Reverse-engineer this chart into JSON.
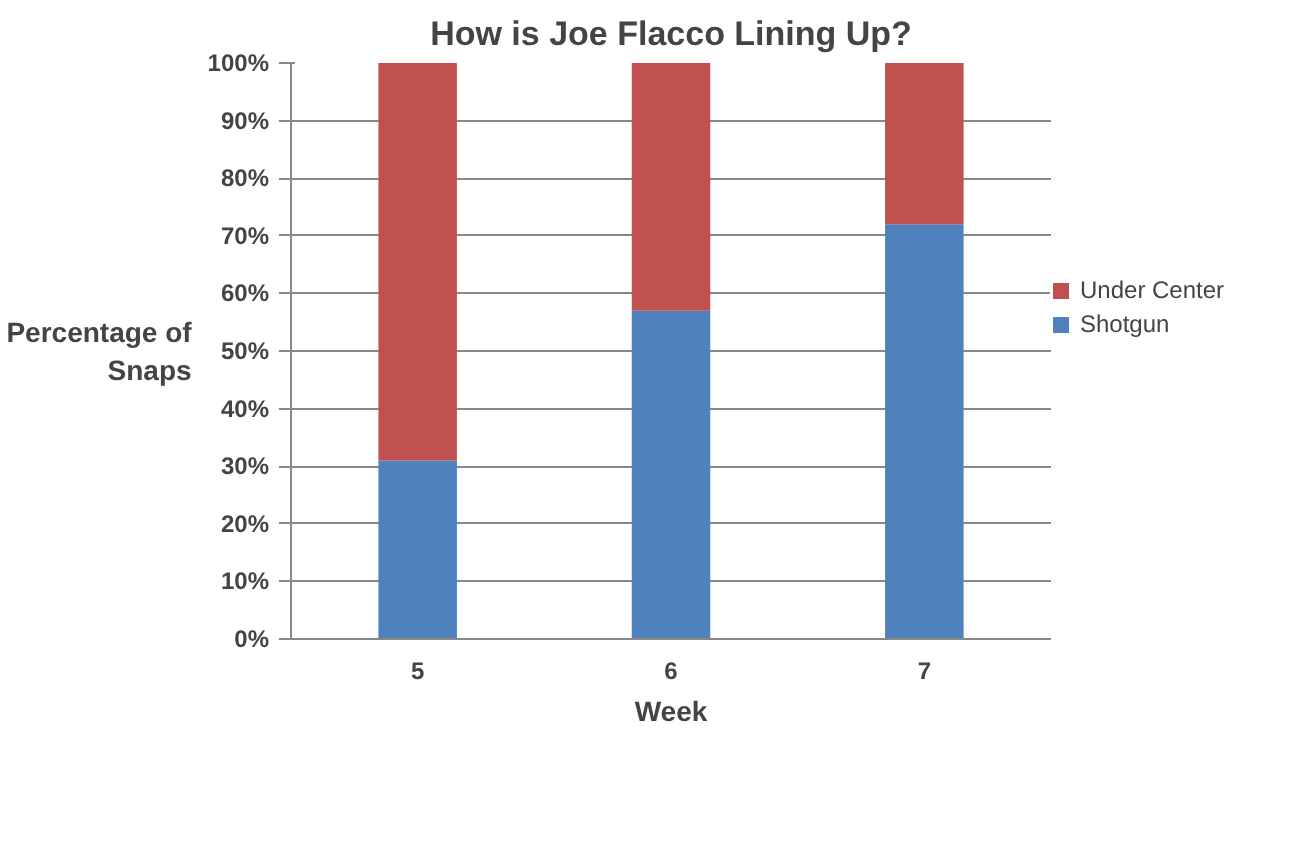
{
  "chart_data": {
    "type": "bar",
    "title": "How is Joe Flacco Lining Up?",
    "xlabel": "Week",
    "ylabel": "Percentage of Snaps",
    "categories": [
      "5",
      "6",
      "7"
    ],
    "stacked": true,
    "series": [
      {
        "name": "Shotgun",
        "color": "#4f81bd",
        "values": [
          31,
          57,
          72
        ]
      },
      {
        "name": "Under Center",
        "color": "#c0504d",
        "values": [
          69,
          43,
          28
        ]
      }
    ],
    "ylim": [
      0,
      100
    ],
    "yticks": [
      {
        "value": 0,
        "label": "0%"
      },
      {
        "value": 10,
        "label": "10%"
      },
      {
        "value": 20,
        "label": "20%"
      },
      {
        "value": 30,
        "label": "30%"
      },
      {
        "value": 40,
        "label": "40%"
      },
      {
        "value": 50,
        "label": "50%"
      },
      {
        "value": 60,
        "label": "60%"
      },
      {
        "value": 70,
        "label": "70%"
      },
      {
        "value": 80,
        "label": "80%"
      },
      {
        "value": 90,
        "label": "90%"
      },
      {
        "value": 100,
        "label": "100%"
      }
    ],
    "grid": "y",
    "legend": "right"
  }
}
